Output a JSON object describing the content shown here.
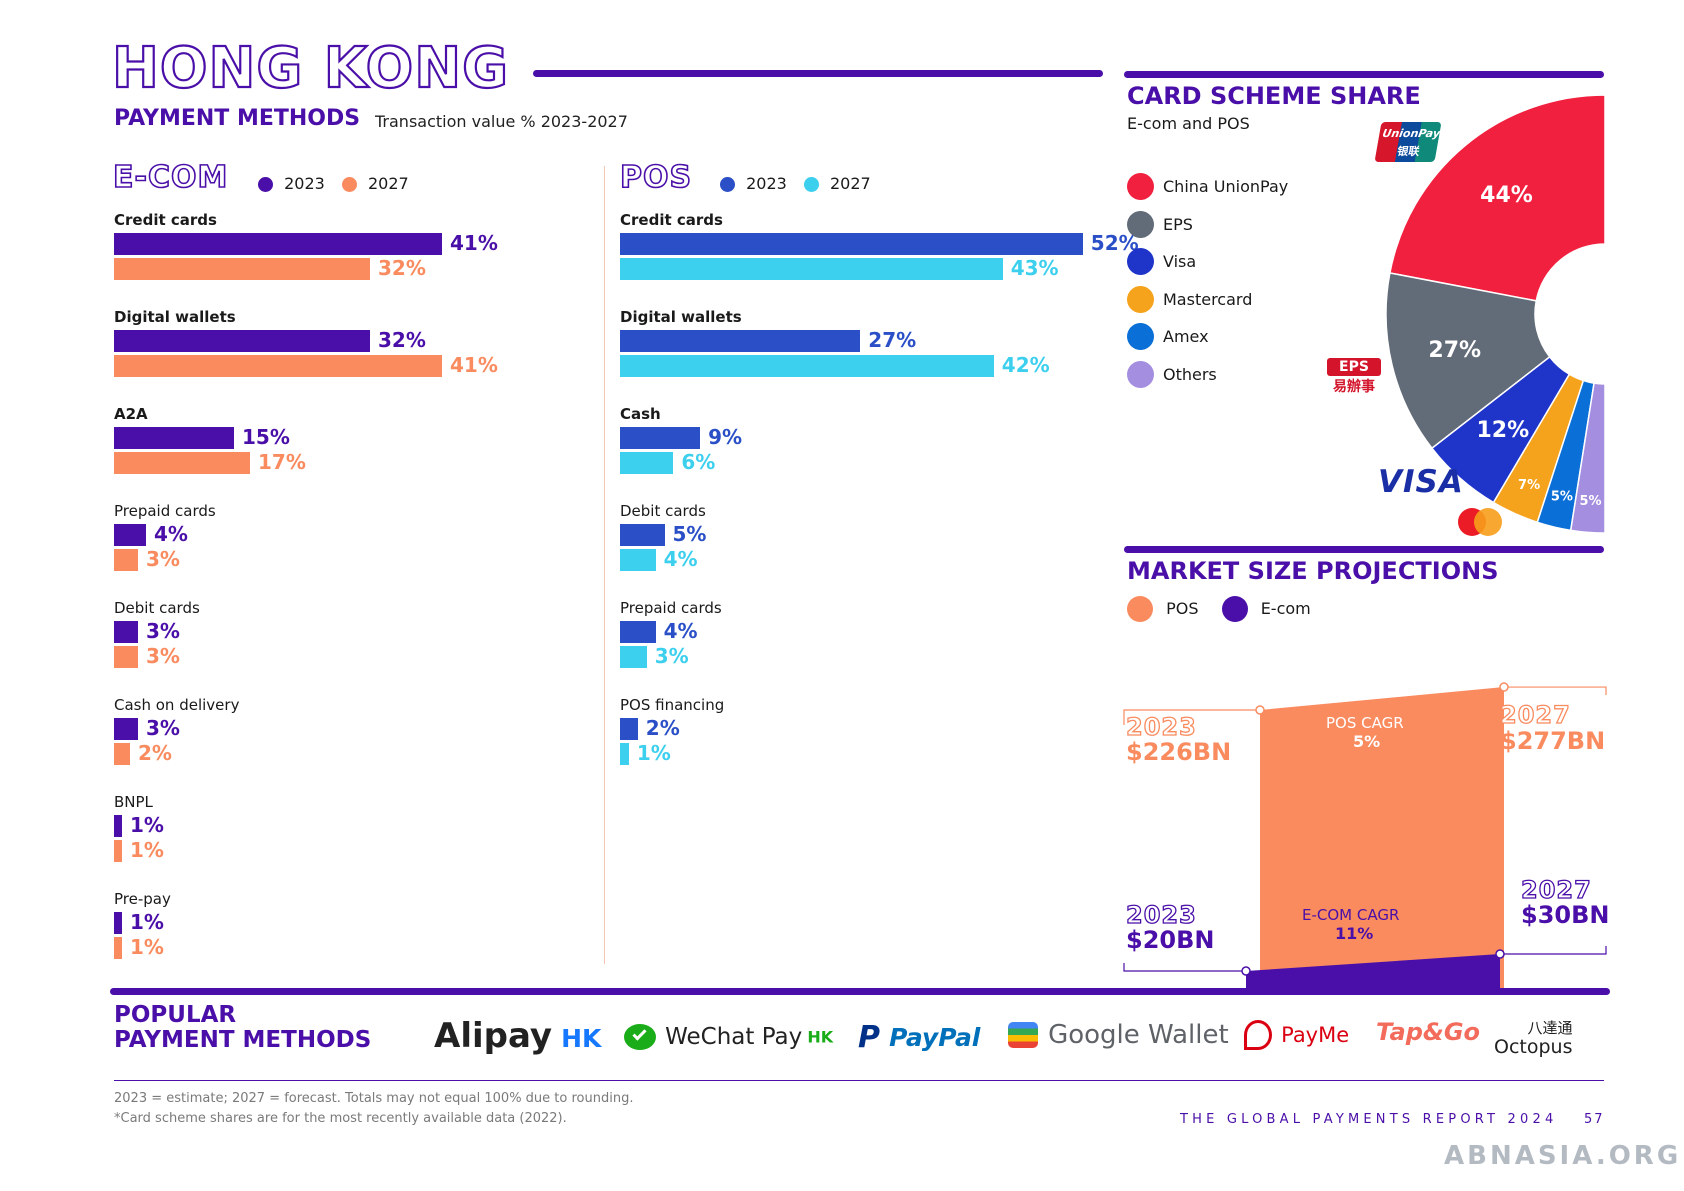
{
  "header": {
    "title": "HONG KONG",
    "subtitle": "PAYMENT METHODS",
    "subtitle_note": "Transaction value % 2023-2027"
  },
  "ecom": {
    "section_title": "E-COM",
    "legend": [
      {
        "label": "2023",
        "color": "#4a0fa8"
      },
      {
        "label": "2027",
        "color": "#f98b5f"
      }
    ],
    "colors": {
      "y2023": "#4a0fa8",
      "y2027": "#f98b5f"
    }
  },
  "pos": {
    "section_title": "POS",
    "legend": [
      {
        "label": "2023",
        "color": "#2a4fc7"
      },
      {
        "label": "2027",
        "color": "#3dd0ee"
      }
    ],
    "colors": {
      "y2023": "#2a4fc7",
      "y2027": "#3dd0ee"
    }
  },
  "card_scheme": {
    "title": "CARD SCHEME SHARE",
    "subtitle": "E-com and POS",
    "legend": [
      {
        "label": "China UnionPay",
        "color": "#f2203f"
      },
      {
        "label": "EPS",
        "color": "#626b78"
      },
      {
        "label": "Visa",
        "color": "#1f35c9"
      },
      {
        "label": "Mastercard",
        "color": "#f5a21c"
      },
      {
        "label": "Amex",
        "color": "#0a6fd6"
      },
      {
        "label": "Others",
        "color": "#a48ee0"
      }
    ],
    "brand_labels": {
      "unionpay": "UnionPay",
      "unionpay_cn": "银联",
      "eps": "EPS",
      "eps_cn": "易辦事",
      "visa": "VISA"
    }
  },
  "market_size": {
    "title": "MARKET SIZE PROJECTIONS",
    "legend": [
      {
        "label": "POS",
        "color": "#f98b5f"
      },
      {
        "label": "E-com",
        "color": "#4a0fa8"
      }
    ],
    "pos_2023_year": "2023",
    "pos_2023_value": "$226BN",
    "pos_2027_year": "2027",
    "pos_2027_value": "$277BN",
    "pos_cagr_label": "POS CAGR",
    "pos_cagr_value": "5%",
    "ecom_2023_year": "2023",
    "ecom_2023_value": "$20BN",
    "ecom_2027_year": "2027",
    "ecom_2027_value": "$30BN",
    "ecom_cagr_label": "E-COM CAGR",
    "ecom_cagr_value": "11%"
  },
  "popular": {
    "title_line1": "POPULAR",
    "title_line2": "PAYMENT METHODS",
    "brands": {
      "alipay": "Alipay",
      "alipay_hk": "HK",
      "wechat": "WeChat Pay",
      "wechat_hk": "HK",
      "paypal": "PayPal",
      "google": "Google Wallet",
      "payme": "PayMe",
      "tapgo": "Tap&Go",
      "octopus_cn": "八達通",
      "octopus": "Octopus"
    }
  },
  "footer": {
    "note1": "2023 = estimate; 2027 = forecast. Totals may not equal 100% due to rounding.",
    "note2": "*Card scheme shares are for the most recently available data (2022).",
    "report": "THE GLOBAL PAYMENTS REPORT 2024",
    "page": "57",
    "watermark": "ABNASIA.ORG"
  },
  "chart_data": [
    {
      "type": "bar",
      "title": "E-COM",
      "categories": [
        "Credit cards",
        "Digital wallets",
        "A2A",
        "Prepaid cards",
        "Debit cards",
        "Cash on delivery",
        "BNPL",
        "Pre-pay"
      ],
      "series": [
        {
          "name": "2023",
          "values": [
            41,
            32,
            15,
            4,
            3,
            3,
            1,
            1
          ]
        },
        {
          "name": "2027",
          "values": [
            32,
            41,
            17,
            3,
            3,
            2,
            1,
            1
          ]
        }
      ],
      "bold_categories": [
        "Credit cards",
        "Digital wallets",
        "A2A"
      ],
      "value_suffix": "%"
    },
    {
      "type": "bar",
      "title": "POS",
      "categories": [
        "Credit cards",
        "Digital wallets",
        "Cash",
        "Debit cards",
        "Prepaid cards",
        "POS financing"
      ],
      "series": [
        {
          "name": "2023",
          "values": [
            52,
            27,
            9,
            5,
            4,
            2
          ]
        },
        {
          "name": "2027",
          "values": [
            43,
            42,
            6,
            4,
            3,
            1
          ]
        }
      ],
      "bold_categories": [
        "Credit cards",
        "Digital wallets",
        "Cash"
      ],
      "value_suffix": "%"
    },
    {
      "type": "pie",
      "title": "CARD SCHEME SHARE",
      "categories": [
        "China UnionPay",
        "EPS",
        "Visa",
        "Mastercard",
        "Amex",
        "Others"
      ],
      "values": [
        44,
        27,
        12,
        7,
        5,
        5
      ],
      "value_suffix": "%"
    },
    {
      "type": "area",
      "title": "MARKET SIZE PROJECTIONS",
      "x": [
        "2023",
        "2027"
      ],
      "series": [
        {
          "name": "POS",
          "values": [
            226,
            277
          ],
          "unit": "BN"
        },
        {
          "name": "E-com",
          "values": [
            20,
            30
          ],
          "unit": "BN"
        }
      ]
    }
  ]
}
